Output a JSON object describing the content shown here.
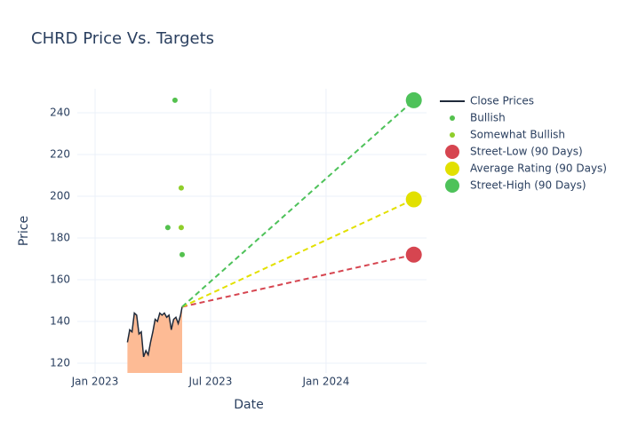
{
  "chart_data": {
    "type": "line",
    "title": "CHRD Price Vs. Targets",
    "x_label": "Date",
    "y_label": "Price",
    "xlim": [
      2022.923,
      2024.435
    ],
    "ylim": [
      115.3,
      251.5
    ],
    "xticks": [
      {
        "value": 2023,
        "label": "Jan 2023"
      },
      {
        "value": 2023.5,
        "label": "Jul 2023"
      },
      {
        "value": 2024,
        "label": "Jan 2024"
      }
    ],
    "yticks": [
      120,
      140,
      160,
      180,
      200,
      220,
      240
    ],
    "grid": true,
    "legend": "right",
    "series": [
      {
        "name": "Close Prices",
        "type": "line",
        "color": "#1f2a3a",
        "fill": "#fdbb95",
        "x": [
          2023.14,
          2023.15,
          2023.16,
          2023.17,
          2023.18,
          2023.19,
          2023.2,
          2023.21,
          2023.22,
          2023.23,
          2023.24,
          2023.25,
          2023.26,
          2023.27,
          2023.28,
          2023.29,
          2023.3,
          2023.31,
          2023.32,
          2023.33,
          2023.34,
          2023.35,
          2023.36,
          2023.37,
          2023.377
        ],
        "values": [
          130,
          136,
          135,
          144,
          143,
          134,
          135,
          123,
          126,
          124,
          130,
          135,
          141,
          140,
          144,
          143,
          144,
          142,
          143,
          136,
          141,
          142,
          139,
          143,
          147
        ]
      },
      {
        "name": "Bullish",
        "type": "scatter",
        "color": "#54c14e",
        "x": [
          2023.315,
          2023.346,
          2023.377
        ],
        "values": [
          185,
          246,
          172
        ]
      },
      {
        "name": "Somewhat Bullish",
        "type": "scatter",
        "color": "#8fce2b",
        "x": [
          2023.373,
          2023.373
        ],
        "values": [
          185,
          204
        ]
      },
      {
        "name": "Street-Low (90 Days)",
        "type": "target",
        "color": "#d64550",
        "x": [
          2024.38
        ],
        "values": [
          172
        ]
      },
      {
        "name": "Average Rating (90 Days)",
        "type": "target",
        "color": "#e2e000",
        "x": [
          2024.38
        ],
        "values": [
          198.5
        ]
      },
      {
        "name": "Street-High (90 Days)",
        "type": "target",
        "color": "#4ec25a",
        "x": [
          2024.38
        ],
        "values": [
          246
        ]
      }
    ]
  }
}
